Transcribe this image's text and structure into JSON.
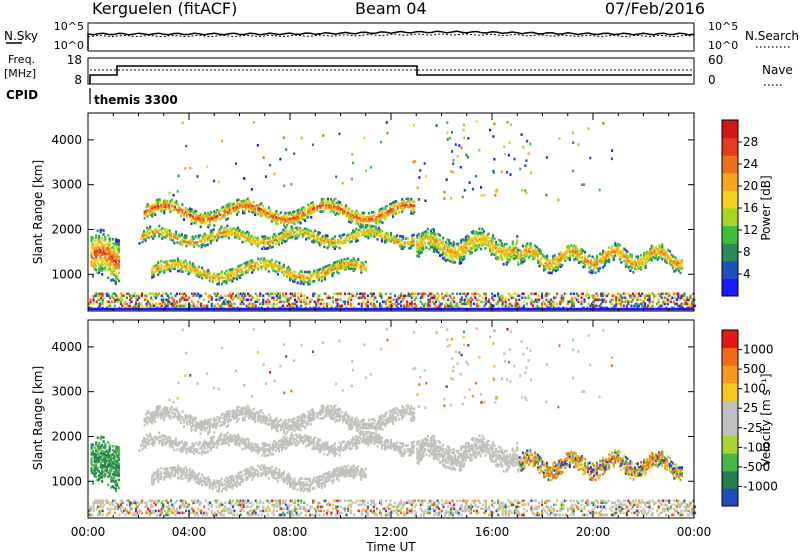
{
  "header": {
    "radar": "Kerguelen (fitACF)",
    "beam": "Beam 04",
    "date": "07/Feb/2016"
  },
  "top_panels": {
    "nsky_label": "N.Sky",
    "nsearch_label": "N.Search",
    "nsky_ticks": [
      "10^5",
      "10^0"
    ],
    "nsearch_ticks": [
      "10^5",
      "10^0"
    ],
    "freq_label_1": "Freq.",
    "freq_label_2": "[MHz]",
    "freq_ticks": [
      "18",
      "8"
    ],
    "nave_label": "Nave",
    "nave_ticks": [
      "60",
      "0"
    ],
    "cpid_label": "CPID",
    "cpid_value": "themis 3300"
  },
  "colors": {
    "power": [
      "#1a1aff",
      "#1e4fc0",
      "#2b8a55",
      "#3cbf3c",
      "#a6d62a",
      "#f2d21b",
      "#f7a51c",
      "#f0711d",
      "#e23b1e",
      "#d41515"
    ],
    "velocity": [
      "#e41616",
      "#f36a18",
      "#f79a1c",
      "#f5c81b",
      "#c0c0c0",
      "#c0c0c0",
      "#a8d630",
      "#45b847",
      "#2a7a52",
      "#1f4bbf"
    ],
    "ground_scatter": "#c2c2bc"
  },
  "chart_data": [
    {
      "type": "heatmap",
      "name": "power-panel",
      "ylabel": "Slant Range [km]",
      "xlabel": "Time UT",
      "x_ticks": [
        "00:00",
        "04:00",
        "08:00",
        "12:00",
        "16:00",
        "20:00",
        "00:00"
      ],
      "y_ticks": [
        "1000",
        "2000",
        "3000",
        "4000"
      ],
      "xlim_hours": [
        0,
        24
      ],
      "ylim_km": [
        180,
        4600
      ],
      "colorbar_label": "Power [dB]",
      "colorbar_ticks": [
        "28",
        "24",
        "20",
        "16",
        "12",
        "8",
        "4"
      ],
      "bands": [
        {
          "t": [
            2.2,
            12.9
          ],
          "r0": 2350,
          "amp": 160,
          "thick": 170,
          "period": 3.2,
          "level": 0.75
        },
        {
          "t": [
            2.0,
            12.9
          ],
          "r0": 1800,
          "amp": 120,
          "thick": 140,
          "period": 2.8,
          "level": 0.55
        },
        {
          "t": [
            2.5,
            11.0
          ],
          "r0": 1050,
          "amp": 150,
          "thick": 150,
          "period": 3.5,
          "level": 0.6
        },
        {
          "t": [
            0.1,
            1.2
          ],
          "r0": 1350,
          "amp": 120,
          "thick": 500,
          "period": 1.5,
          "level": 0.75
        },
        {
          "t": [
            13.0,
            17.0
          ],
          "r0": 1600,
          "amp": 150,
          "thick": 260,
          "period": 2.0,
          "level": 0.55
        },
        {
          "t": [
            17.0,
            23.5
          ],
          "r0": 1350,
          "amp": 150,
          "thick": 200,
          "period": 1.7,
          "level": 0.6
        }
      ]
    },
    {
      "type": "heatmap",
      "name": "velocity-panel",
      "ylabel": "Slant Range [km]",
      "xlabel": "Time UT",
      "x_ticks": [
        "00:00",
        "04:00",
        "08:00",
        "12:00",
        "16:00",
        "20:00",
        "00:00"
      ],
      "y_ticks": [
        "1000",
        "2000",
        "3000",
        "4000"
      ],
      "xlim_hours": [
        0,
        24
      ],
      "ylim_km": [
        180,
        4600
      ],
      "colorbar_label": "Velocity [m s⁻¹]",
      "colorbar_ticks": [
        "1000",
        "500",
        "100",
        "25",
        "-25",
        "-100",
        "-500",
        "-1000"
      ]
    }
  ]
}
